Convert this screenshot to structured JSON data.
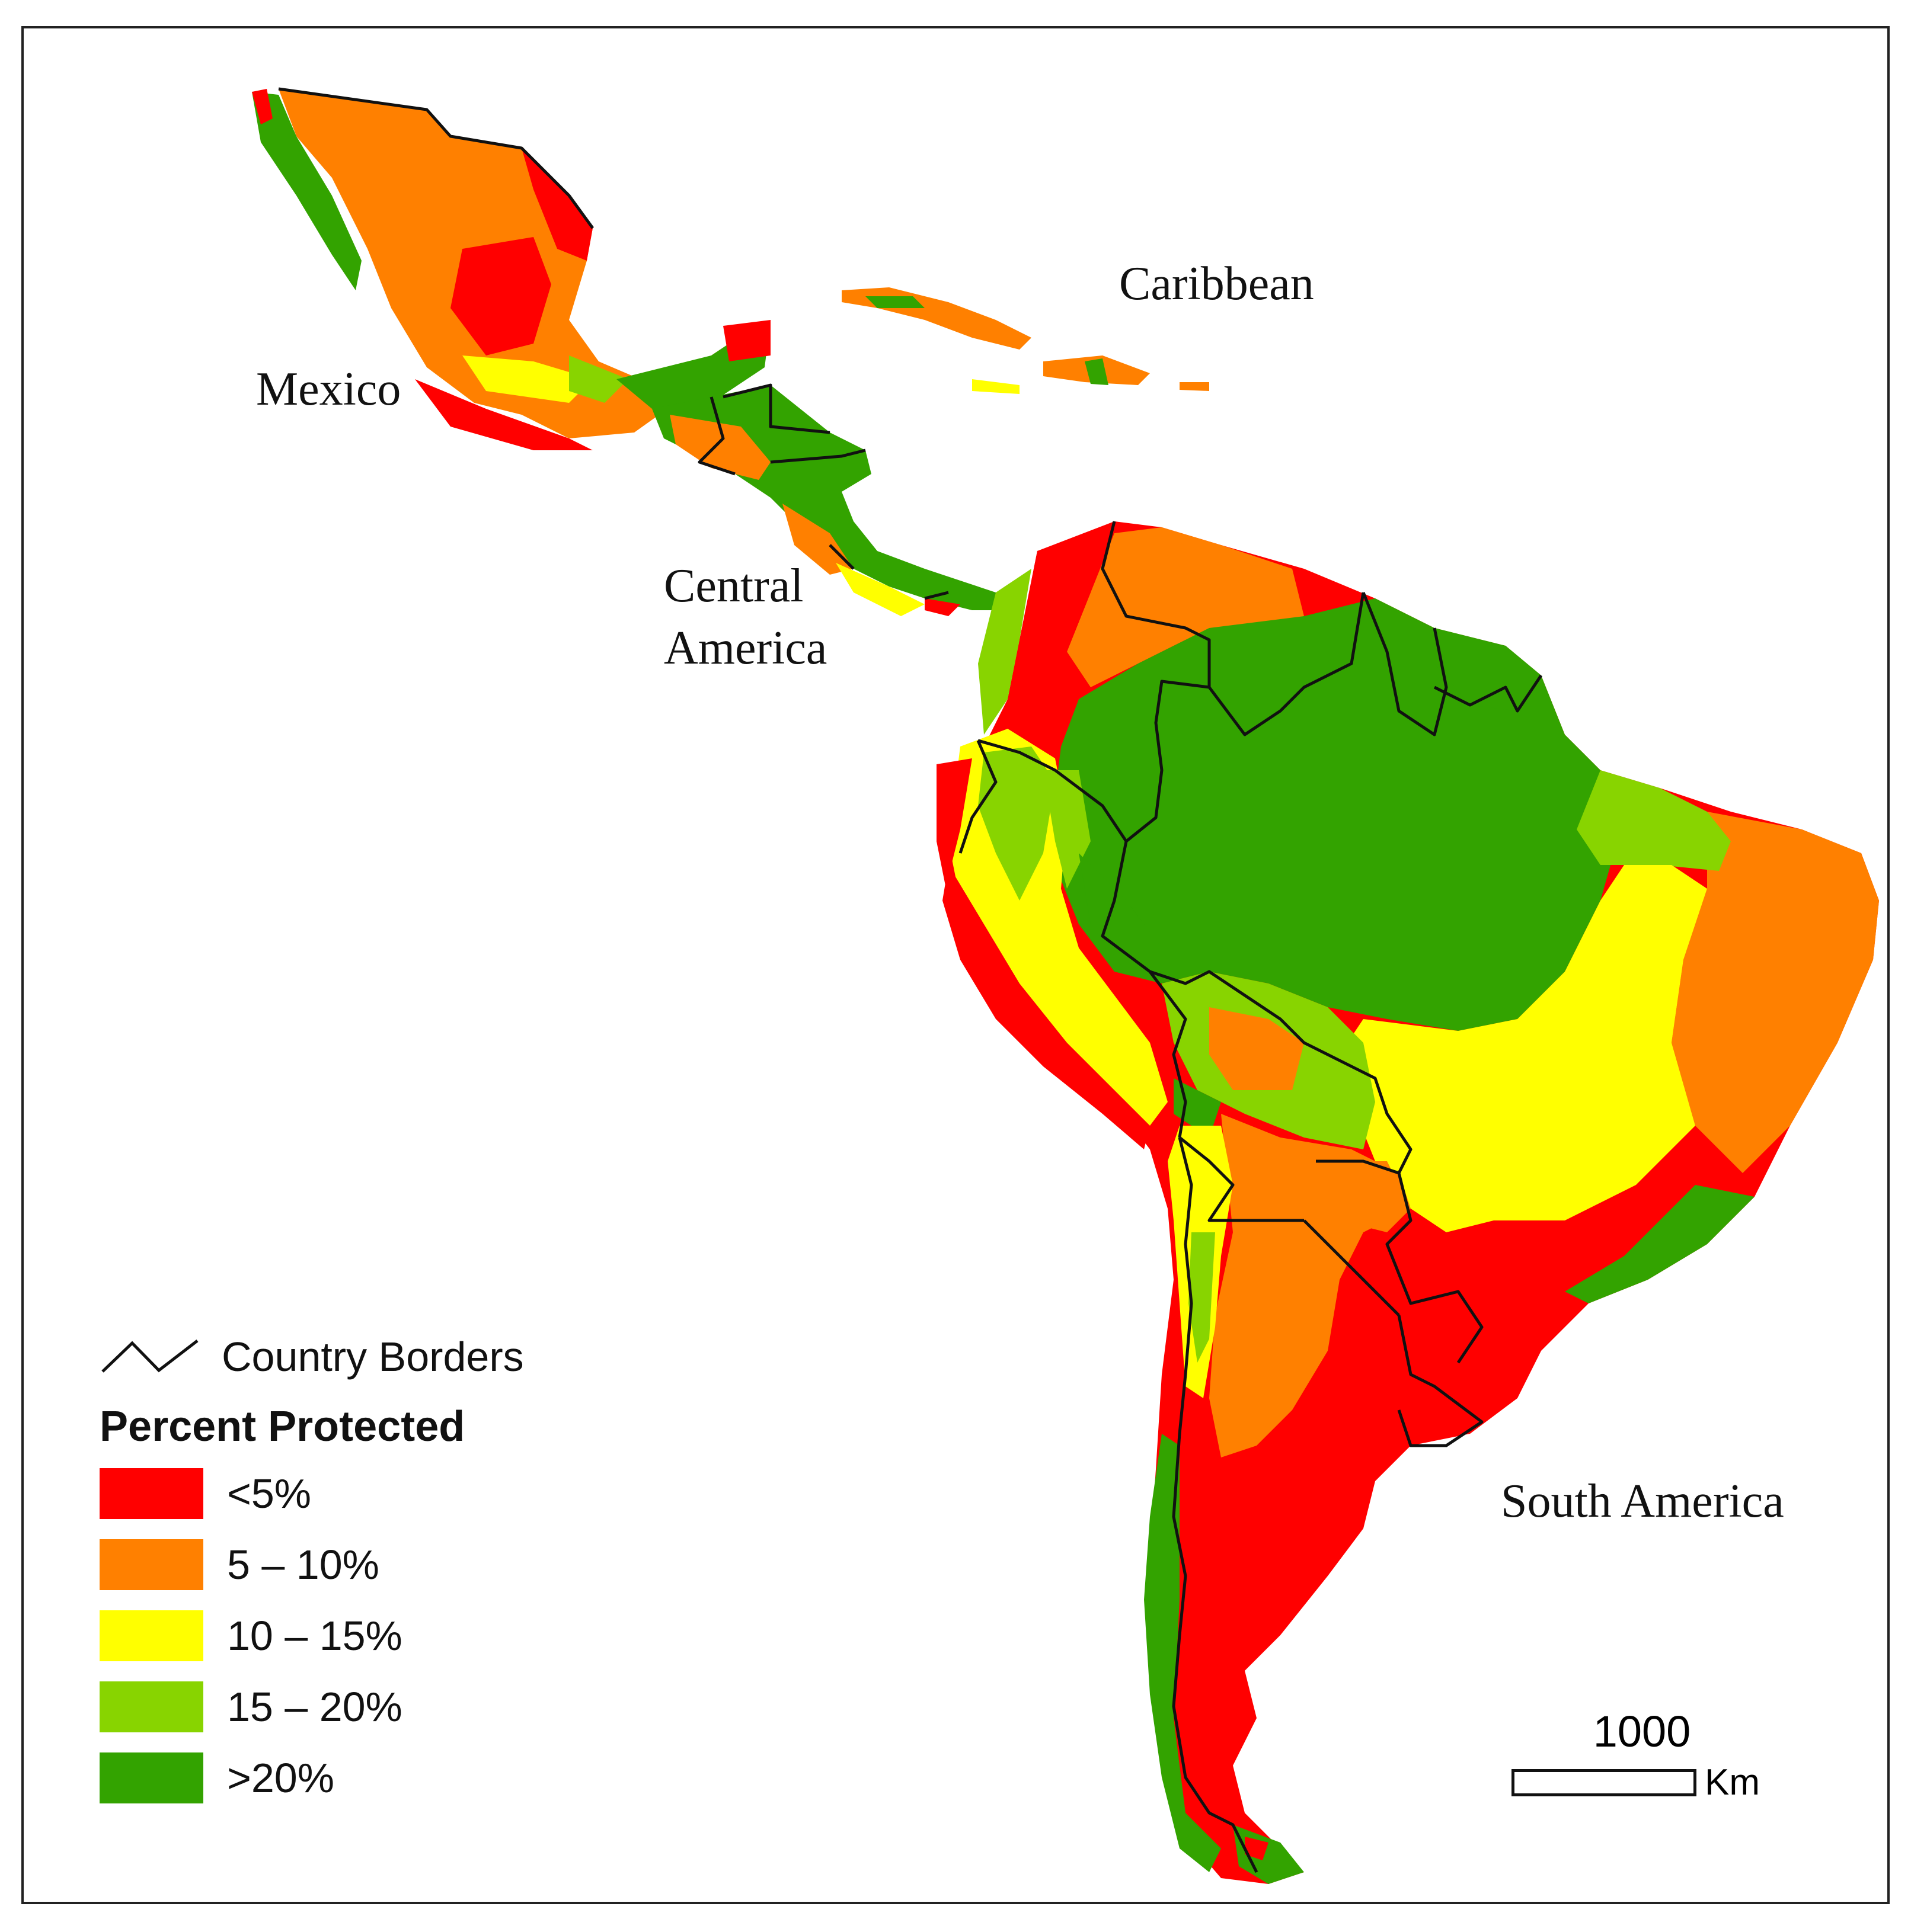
{
  "map": {
    "labels": {
      "mexico": "Mexico",
      "caribbean": "Caribbean",
      "central_america_line1": "Central",
      "central_america_line2": "America",
      "south_america": "South America"
    },
    "classes": [
      {
        "label": "<5%",
        "color": "#ff0000"
      },
      {
        "label": "5 – 10%",
        "color": "#ff8000"
      },
      {
        "label": "10 – 15%",
        "color": "#ffff00"
      },
      {
        "label": "15 – 20%",
        "color": "#88d400"
      },
      {
        "label": ">20%",
        "color": "#33a300"
      }
    ]
  },
  "legend": {
    "borders_label": "Country Borders",
    "title": "Percent Protected"
  },
  "scale_bar": {
    "value": "1000",
    "unit": "Km"
  }
}
